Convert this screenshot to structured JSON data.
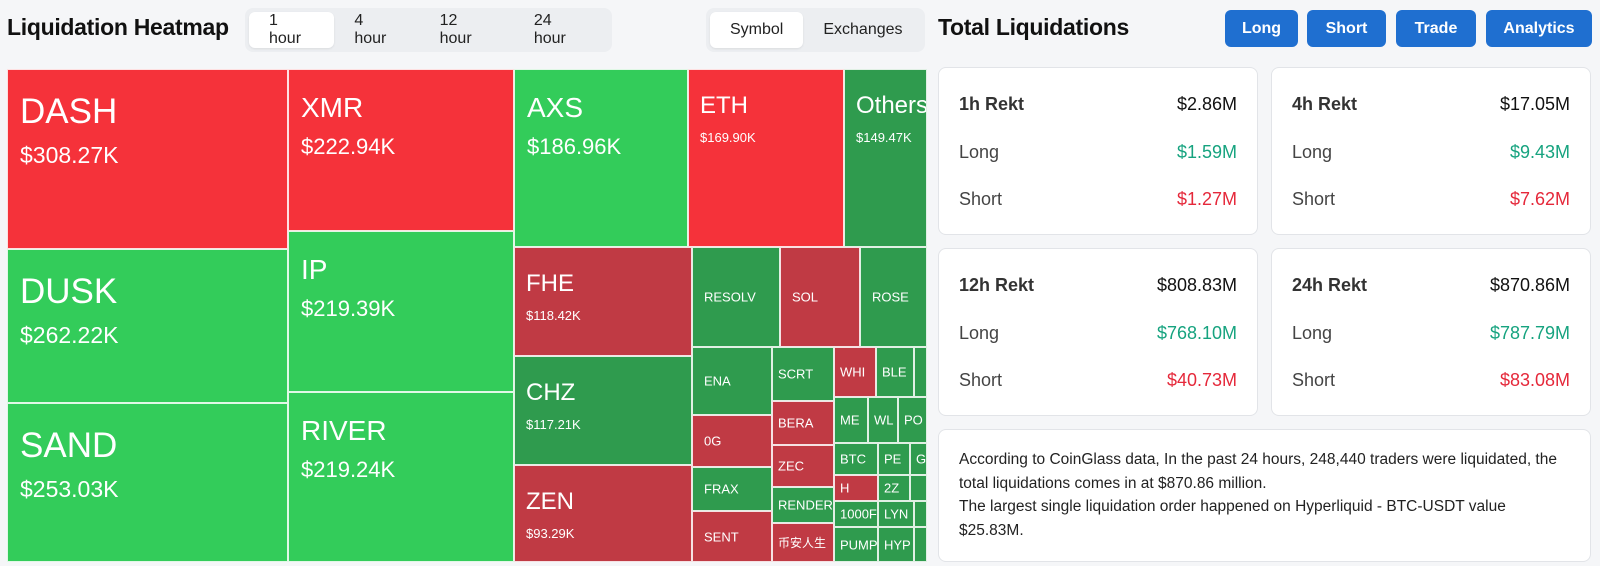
{
  "heatmap": {
    "title": "Liquidation Heatmap",
    "time_options": [
      "1 hour",
      "4 hour",
      "12 hour",
      "24 hour"
    ],
    "active_time": "1 hour",
    "mode_options": [
      "Symbol",
      "Exchanges"
    ],
    "active_mode": "Symbol",
    "tiles": [
      {
        "symbol": "DASH",
        "value": "$308.27K",
        "direction": "short"
      },
      {
        "symbol": "DUSK",
        "value": "$262.22K",
        "direction": "long"
      },
      {
        "symbol": "SAND",
        "value": "$253.03K",
        "direction": "long"
      },
      {
        "symbol": "XMR",
        "value": "$222.94K",
        "direction": "short"
      },
      {
        "symbol": "IP",
        "value": "$219.39K",
        "direction": "long"
      },
      {
        "symbol": "RIVER",
        "value": "$219.24K",
        "direction": "long"
      },
      {
        "symbol": "AXS",
        "value": "$186.96K",
        "direction": "long"
      },
      {
        "symbol": "ETH",
        "value": "$169.90K",
        "direction": "short"
      },
      {
        "symbol": "Others",
        "value": "$149.47K",
        "direction": "long"
      },
      {
        "symbol": "FHE",
        "value": "$118.42K",
        "direction": "short"
      },
      {
        "symbol": "CHZ",
        "value": "$117.21K",
        "direction": "long"
      },
      {
        "symbol": "ZEN",
        "value": "$93.29K",
        "direction": "short"
      }
    ],
    "small_tiles": [
      "RESOLV",
      "SOL",
      "ROSE",
      "ENA",
      "SCRT",
      "WHI",
      "BLE",
      "BERA",
      "ME",
      "WL",
      "PO",
      "0G",
      "ZEC",
      "BTC",
      "PE",
      "G",
      "FRAX",
      "H",
      "2Z",
      "RENDER",
      "1000F",
      "LYN",
      "SENT",
      "币安人生",
      "PUMP",
      "HYP"
    ]
  },
  "totals": {
    "title": "Total Liquidations",
    "buttons": [
      "Long",
      "Short",
      "Trade",
      "Analytics"
    ],
    "cards": [
      {
        "label": "1h Rekt",
        "total": "$2.86M",
        "long_label": "Long",
        "long": "$1.59M",
        "short_label": "Short",
        "short": "$1.27M"
      },
      {
        "label": "4h Rekt",
        "total": "$17.05M",
        "long_label": "Long",
        "long": "$9.43M",
        "short_label": "Short",
        "short": "$7.62M"
      },
      {
        "label": "12h Rekt",
        "total": "$808.83M",
        "long_label": "Long",
        "long": "$768.10M",
        "short_label": "Short",
        "short": "$40.73M"
      },
      {
        "label": "24h Rekt",
        "total": "$870.86M",
        "long_label": "Long",
        "long": "$787.79M",
        "short_label": "Short",
        "short": "$83.08M"
      }
    ],
    "summary_line1": "According to CoinGlass data, In the past 24 hours, 248,440 traders were liquidated, the total liquidations comes in at $870.86 million.",
    "summary_line2": "The largest single liquidation order happened on Hyperliquid - BTC-USDT value $25.83M."
  },
  "colors": {
    "short_bright": "#f5323a",
    "long_bright": "#33cc5a",
    "short_dark": "#c03a44",
    "long_dark": "#2f9b4e",
    "positive_text": "#16a37f",
    "negative_text": "#e5283a",
    "button_blue": "#1f6fd0"
  }
}
